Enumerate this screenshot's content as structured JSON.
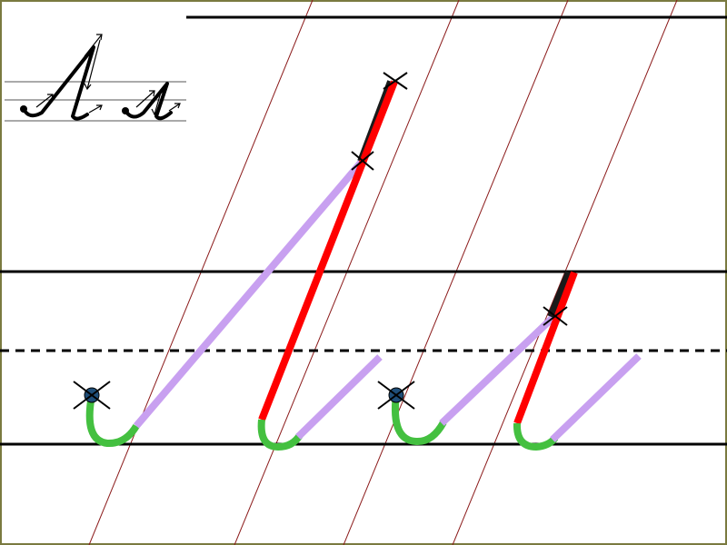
{
  "colors": {
    "frame": "#7a7a40",
    "ruling_line": "#000000",
    "slant_line": "#8b1a1a",
    "upstroke": "#c8a0f0",
    "downstroke": "#ff0000",
    "overlap_stroke": "#1a1a1a",
    "hook_stroke": "#44c040",
    "start_dot": "#1f4e79",
    "cross_mark": "#000000"
  },
  "sample": {
    "letters": [
      "Л",
      "л"
    ],
    "style": "handwritten-cyrillic"
  },
  "guides": {
    "top_line": "solid",
    "upper_line": "solid",
    "midline": "dashed",
    "baseline": "solid"
  },
  "icons": [
    "start-dot-icon",
    "cross-marker-icon",
    "arrow-icon"
  ]
}
